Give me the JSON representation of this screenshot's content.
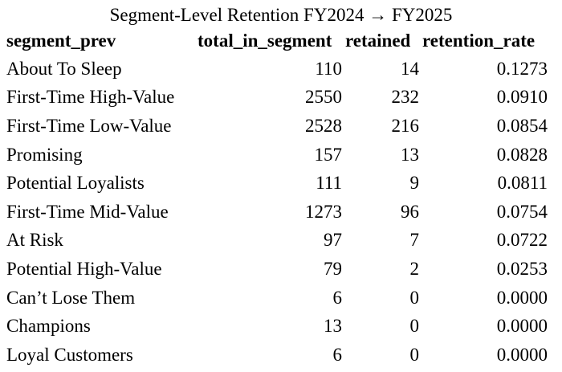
{
  "table": {
    "caption": "Segment-Level Retention FY2024 → FY2025",
    "headers": [
      "segment_prev",
      "total_in_segment",
      "retained",
      "retention_rate"
    ],
    "rows": [
      [
        "About To Sleep",
        "110",
        "14",
        "0.1273"
      ],
      [
        "First-Time High-Value",
        "2550",
        "232",
        "0.0910"
      ],
      [
        "First-Time Low-Value",
        "2528",
        "216",
        "0.0854"
      ],
      [
        "Promising",
        "157",
        "13",
        "0.0828"
      ],
      [
        "Potential Loyalists",
        "111",
        "9",
        "0.0811"
      ],
      [
        "First-Time Mid-Value",
        "1273",
        "96",
        "0.0754"
      ],
      [
        "At Risk",
        "97",
        "7",
        "0.0722"
      ],
      [
        "Potential High-Value",
        "79",
        "2",
        "0.0253"
      ],
      [
        "Can’t Lose Them",
        "6",
        "0",
        "0.0000"
      ],
      [
        "Champions",
        "13",
        "0",
        "0.0000"
      ],
      [
        "Loyal Customers",
        "6",
        "0",
        "0.0000"
      ]
    ]
  }
}
